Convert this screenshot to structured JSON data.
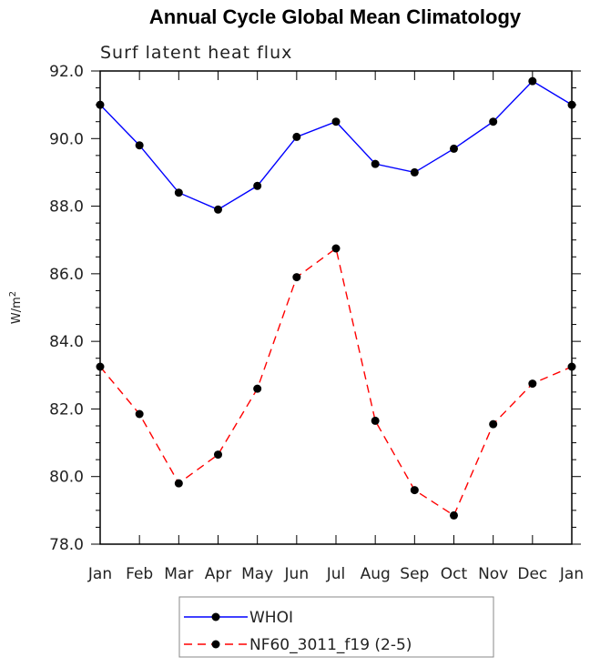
{
  "chart_data": {
    "type": "line",
    "title": "Annual Cycle Global Mean Climatology",
    "subtitle": "Surf latent heat flux",
    "ylabel_base": "W/m",
    "ylabel_sup": "2",
    "xlabel": "",
    "categories": [
      "Jan",
      "Feb",
      "Mar",
      "Apr",
      "May",
      "Jun",
      "Jul",
      "Aug",
      "Sep",
      "Oct",
      "Nov",
      "Dec",
      "Jan"
    ],
    "ylim": [
      78.0,
      92.0
    ],
    "yticks": [
      "78.0",
      "80.0",
      "82.0",
      "84.0",
      "86.0",
      "88.0",
      "90.0",
      "92.0"
    ],
    "grid": false,
    "legend_position": "bottom-center",
    "series": [
      {
        "name": "WHOI",
        "color": "#0000ff",
        "dash": "solid",
        "values": [
          91.0,
          89.8,
          88.4,
          87.9,
          88.6,
          90.05,
          90.5,
          89.25,
          89.0,
          89.7,
          90.5,
          91.7,
          91.0
        ]
      },
      {
        "name": "NF60_3011_f19 (2-5)",
        "color": "#ff0000",
        "dash": "dashed",
        "values": [
          83.25,
          81.85,
          79.8,
          80.65,
          82.6,
          85.9,
          86.75,
          81.65,
          79.6,
          78.85,
          81.55,
          82.75,
          83.25
        ]
      }
    ]
  }
}
